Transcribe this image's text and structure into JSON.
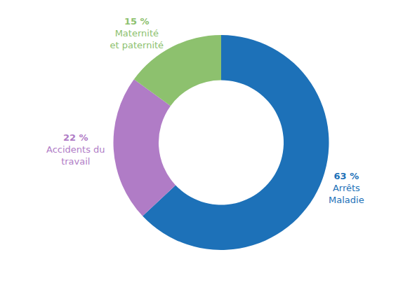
{
  "chart_data": {
    "type": "donut",
    "categories": [
      "Arrêts\nMaladie",
      "Accidents du\ntravail",
      "Maternité\net paternité"
    ],
    "values": [
      63,
      22,
      15
    ],
    "value_labels": [
      "63 %",
      "22 %",
      "15 %"
    ],
    "colors": [
      "#1d71b8",
      "#b07cc6",
      "#8dc16e"
    ]
  }
}
